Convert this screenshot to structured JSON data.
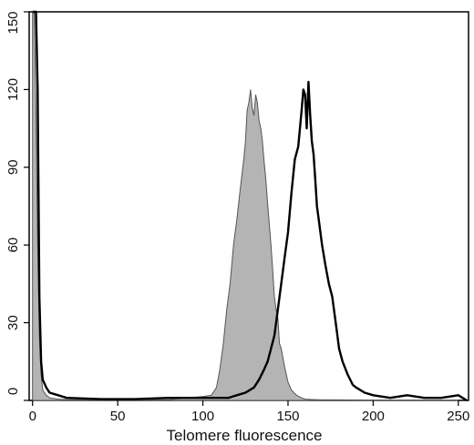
{
  "chart_data": {
    "type": "area",
    "title": "",
    "xlabel": "Telomere fluorescence",
    "ylabel": "",
    "xlim": [
      -2,
      256
    ],
    "ylim": [
      0,
      150
    ],
    "x_ticks": [
      0,
      50,
      100,
      150,
      200,
      250
    ],
    "y_ticks": [
      0,
      30,
      60,
      90,
      120,
      150
    ],
    "grid": false,
    "legend": "none",
    "colors": {
      "filled": "#b4b4b4",
      "outline": "#000000",
      "frame": "#000000"
    },
    "series": [
      {
        "style": "filled-gray",
        "x": [
          0,
          1,
          2,
          3,
          4,
          5,
          6,
          8,
          10,
          15,
          20,
          40,
          60,
          80,
          90,
          100,
          105,
          108,
          110,
          112,
          114,
          116,
          118,
          120,
          122,
          124,
          125,
          126,
          127,
          128,
          129,
          130,
          131,
          132,
          133,
          134,
          135,
          136,
          137,
          138,
          139,
          140,
          141,
          142,
          143,
          144,
          145,
          146,
          148,
          150,
          152,
          155,
          158,
          160,
          165,
          170,
          180,
          200,
          250
        ],
        "y": [
          150,
          150,
          110,
          60,
          25,
          10,
          4,
          2,
          1,
          0.5,
          0.3,
          0.2,
          0.2,
          0.3,
          1,
          1.5,
          2,
          5,
          12,
          22,
          35,
          45,
          60,
          70,
          82,
          93,
          100,
          112,
          115,
          120,
          113,
          110,
          118,
          115,
          108,
          105,
          100,
          92,
          85,
          76,
          68,
          60,
          50,
          40,
          35,
          32,
          22,
          20,
          13,
          7,
          4,
          2,
          1,
          0.5,
          0.3,
          0.2,
          0.2,
          0,
          0
        ]
      },
      {
        "style": "black-outline",
        "x": [
          0,
          1,
          2,
          3,
          4,
          5,
          6,
          8,
          10,
          15,
          20,
          40,
          60,
          80,
          100,
          110,
          115,
          120,
          125,
          130,
          133,
          136,
          138,
          140,
          142,
          144,
          146,
          148,
          150,
          152,
          154,
          156,
          158,
          159,
          160,
          161,
          162,
          163,
          164,
          165,
          166,
          167,
          168,
          170,
          172,
          174,
          176,
          178,
          180,
          182,
          185,
          188,
          190,
          195,
          200,
          210,
          220,
          230,
          240,
          250,
          255
        ],
        "y": [
          150,
          150,
          150,
          120,
          40,
          15,
          8,
          5,
          3,
          2,
          1,
          0.5,
          0.5,
          1,
          1,
          1,
          1,
          2,
          3,
          5,
          8,
          12,
          15,
          20,
          25,
          35,
          45,
          55,
          65,
          80,
          93,
          98,
          112,
          120,
          118,
          105,
          123,
          110,
          100,
          95,
          85,
          75,
          70,
          60,
          52,
          45,
          40,
          30,
          20,
          15,
          10,
          6,
          5,
          3,
          2,
          1,
          2,
          1,
          1,
          2,
          0
        ]
      }
    ]
  }
}
